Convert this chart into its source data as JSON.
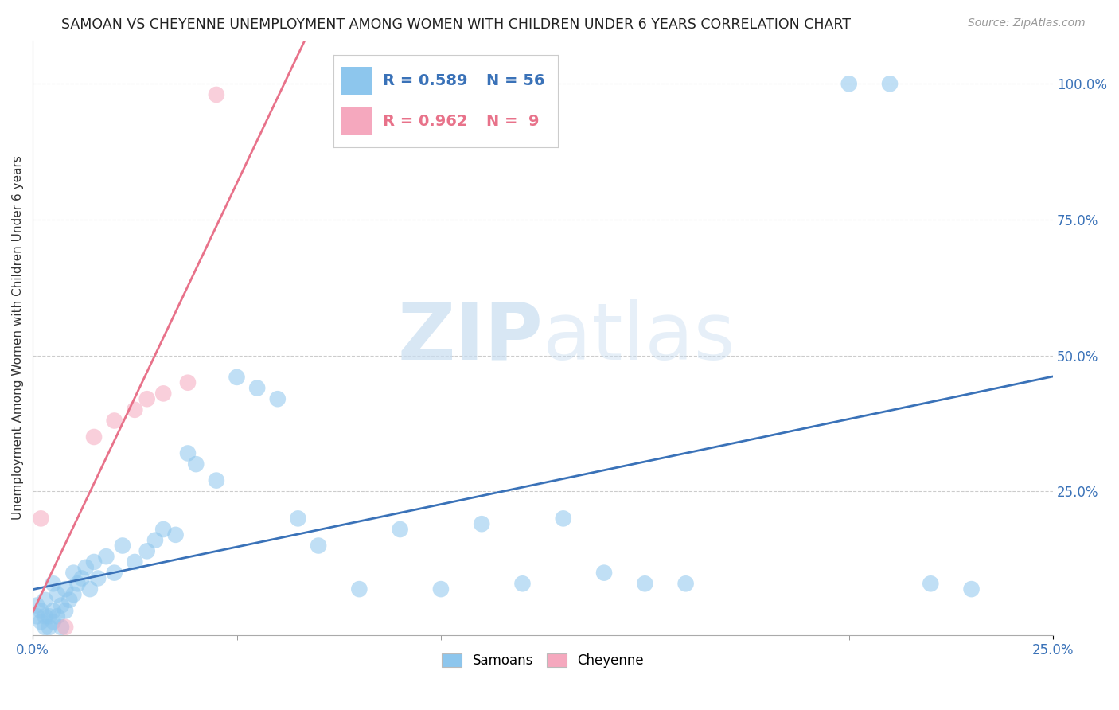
{
  "title": "SAMOAN VS CHEYENNE UNEMPLOYMENT AMONG WOMEN WITH CHILDREN UNDER 6 YEARS CORRELATION CHART",
  "source": "Source: ZipAtlas.com",
  "ylabel": "Unemployment Among Women with Children Under 6 years",
  "xlim": [
    0.0,
    0.25
  ],
  "ylim": [
    -0.015,
    1.08
  ],
  "xtick_vals": [
    0.0,
    0.25
  ],
  "xtick_labels": [
    "0.0%",
    "25.0%"
  ],
  "yticks_right": [
    0.25,
    0.5,
    0.75,
    1.0
  ],
  "ytick_labels_right": [
    "25.0%",
    "50.0%",
    "75.0%",
    "100.0%"
  ],
  "samoans_x": [
    0.001,
    0.001,
    0.002,
    0.002,
    0.003,
    0.003,
    0.003,
    0.004,
    0.004,
    0.005,
    0.005,
    0.005,
    0.006,
    0.006,
    0.007,
    0.007,
    0.008,
    0.008,
    0.009,
    0.01,
    0.01,
    0.011,
    0.012,
    0.013,
    0.014,
    0.015,
    0.016,
    0.018,
    0.02,
    0.022,
    0.025,
    0.028,
    0.03,
    0.032,
    0.035,
    0.038,
    0.04,
    0.045,
    0.05,
    0.055,
    0.06,
    0.065,
    0.07,
    0.08,
    0.09,
    0.1,
    0.11,
    0.12,
    0.13,
    0.14,
    0.15,
    0.16,
    0.2,
    0.21,
    0.22,
    0.23
  ],
  "samoans_y": [
    0.02,
    0.04,
    0.01,
    0.03,
    0.0,
    0.02,
    0.05,
    0.0,
    0.02,
    0.01,
    0.03,
    0.08,
    0.02,
    0.06,
    0.0,
    0.04,
    0.03,
    0.07,
    0.05,
    0.06,
    0.1,
    0.08,
    0.09,
    0.11,
    0.07,
    0.12,
    0.09,
    0.13,
    0.1,
    0.15,
    0.12,
    0.14,
    0.16,
    0.18,
    0.17,
    0.32,
    0.3,
    0.27,
    0.46,
    0.44,
    0.42,
    0.2,
    0.15,
    0.07,
    0.18,
    0.07,
    0.19,
    0.08,
    0.2,
    0.1,
    0.08,
    0.08,
    1.0,
    1.0,
    0.08,
    0.07
  ],
  "cheyenne_x": [
    0.002,
    0.008,
    0.015,
    0.02,
    0.025,
    0.028,
    0.032,
    0.038,
    0.045
  ],
  "cheyenne_y": [
    0.2,
    0.0,
    0.35,
    0.38,
    0.4,
    0.42,
    0.43,
    0.45,
    0.98
  ],
  "samoan_color": "#8dc6ed",
  "cheyenne_color": "#f5a8be",
  "samoan_line_color": "#3a72b8",
  "cheyenne_line_color": "#e8728a",
  "legend_r_samoan": "R = 0.589",
  "legend_n_samoan": "N = 56",
  "legend_r_cheyenne": "R = 0.962",
  "legend_n_cheyenne": "N =  9",
  "watermark_zip": "ZIP",
  "watermark_atlas": "atlas",
  "background_color": "#ffffff",
  "grid_color": "#cccccc",
  "title_fontsize": 12.5,
  "axis_label_fontsize": 11,
  "tick_fontsize": 12,
  "legend_fontsize": 14,
  "source_fontsize": 10
}
